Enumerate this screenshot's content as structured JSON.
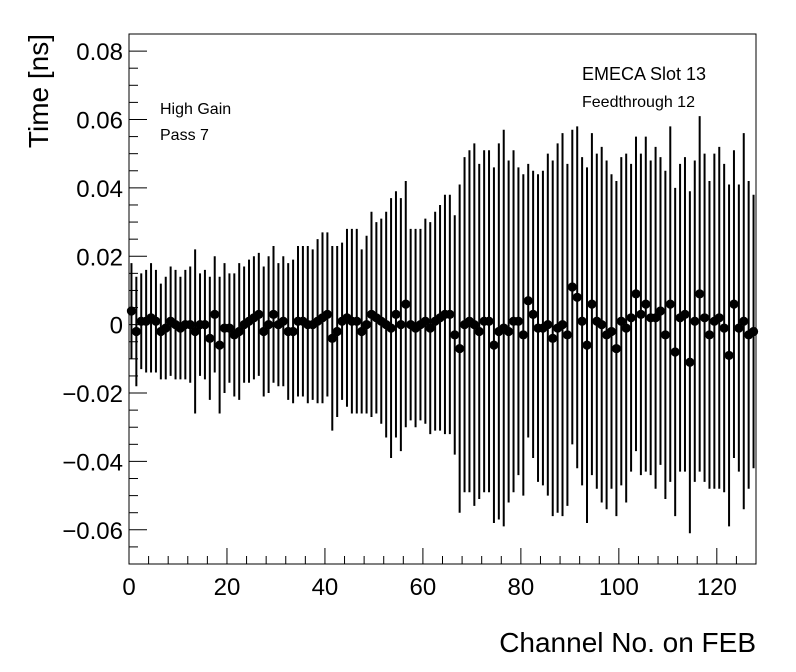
{
  "chart_data": {
    "type": "scatter",
    "title": "",
    "xlabel": "Channel No. on FEB",
    "ylabel": "Time [ns]",
    "xlim": [
      0,
      128
    ],
    "ylim": [
      -0.07,
      0.085
    ],
    "grid": false,
    "x_ticks": [
      0,
      20,
      40,
      60,
      80,
      100,
      120
    ],
    "x_tick_labels": [
      "0",
      "20",
      "40",
      "60",
      "80",
      "100",
      "120"
    ],
    "y_ticks": [
      -0.06,
      -0.04,
      -0.02,
      0,
      0.02,
      0.04,
      0.06,
      0.08
    ],
    "y_tick_labels": [
      "−0.06",
      "−0.04",
      "−0.02",
      "0",
      "0.02",
      "0.04",
      "0.06",
      "0.08"
    ],
    "annotations": {
      "left": [
        "High Gain",
        "Pass 7"
      ],
      "right": [
        "EMECA Slot 13",
        "Feedthrough 12"
      ]
    },
    "marker_color": "#000000",
    "series": [
      {
        "x": [
          0,
          1,
          2,
          3,
          4,
          5,
          6,
          7,
          8,
          9,
          10,
          11,
          12,
          13,
          14,
          15,
          16,
          17,
          18,
          19,
          20,
          21,
          22,
          23,
          24,
          25,
          26,
          27,
          28,
          29,
          30,
          31,
          32,
          33,
          34,
          35,
          36,
          37,
          38,
          39,
          40,
          41,
          42,
          43,
          44,
          45,
          46,
          47,
          48,
          49,
          50,
          51,
          52,
          53,
          54,
          55,
          56,
          57,
          58,
          59,
          60,
          61,
          62,
          63,
          64,
          65,
          66,
          67,
          68,
          69,
          70,
          71,
          72,
          73,
          74,
          75,
          76,
          77,
          78,
          79,
          80,
          81,
          82,
          83,
          84,
          85,
          86,
          87,
          88,
          89,
          90,
          91,
          92,
          93,
          94,
          95,
          96,
          97,
          98,
          99,
          100,
          101,
          102,
          103,
          104,
          105,
          106,
          107,
          108,
          109,
          110,
          111,
          112,
          113,
          114,
          115,
          116,
          117,
          118,
          119,
          120,
          121,
          122,
          123,
          124,
          125,
          126,
          127
        ],
        "y": [
          0.004,
          -0.002,
          0.001,
          0.001,
          0.002,
          0.001,
          -0.002,
          -0.001,
          0.001,
          0,
          -0.001,
          0,
          0,
          -0.002,
          0,
          0,
          -0.004,
          0.003,
          -0.006,
          -0.001,
          -0.001,
          -0.003,
          -0.002,
          0,
          0.001,
          0.002,
          0.003,
          -0.002,
          0,
          0.003,
          0,
          0.001,
          -0.002,
          -0.002,
          0.001,
          0.001,
          0,
          0,
          0.001,
          0.002,
          0.003,
          -0.004,
          -0.002,
          0.001,
          0.002,
          0.001,
          0.001,
          -0.002,
          0,
          0.003,
          0.002,
          0.001,
          0,
          -0.001,
          0.003,
          0,
          0.006,
          0,
          -0.001,
          0,
          0.001,
          -0.001,
          0.001,
          0.002,
          0.003,
          0.003,
          -0.003,
          -0.007,
          0,
          0.001,
          0,
          -0.002,
          0.001,
          0.001,
          -0.006,
          -0.002,
          -0.001,
          -0.002,
          0.001,
          0.001,
          -0.003,
          0.007,
          0.003,
          -0.001,
          -0.001,
          0,
          -0.004,
          -0.001,
          0,
          -0.003,
          0.011,
          0.008,
          0.001,
          -0.006,
          0.006,
          0.001,
          0,
          -0.003,
          -0.002,
          -0.007,
          0.001,
          -0.001,
          0.002,
          0.009,
          0.003,
          0.006,
          0.002,
          0.002,
          0.004,
          -0.003,
          0.006,
          -0.008,
          0.002,
          0.003,
          -0.011,
          0.001,
          0.009,
          0.002,
          -0.003,
          0.001,
          0.002,
          -0.001,
          -0.009,
          0.006,
          -0.001,
          0.001,
          -0.003,
          -0.002
        ],
        "yerr": [
          0.014,
          0.016,
          0.014,
          0.015,
          0.016,
          0.015,
          0.014,
          0.015,
          0.016,
          0.016,
          0.015,
          0.016,
          0.017,
          0.024,
          0.015,
          0.016,
          0.018,
          0.017,
          0.02,
          0.019,
          0.016,
          0.018,
          0.02,
          0.017,
          0.018,
          0.018,
          0.018,
          0.019,
          0.02,
          0.02,
          0.018,
          0.019,
          0.02,
          0.021,
          0.022,
          0.022,
          0.023,
          0.022,
          0.024,
          0.025,
          0.024,
          0.027,
          0.025,
          0.023,
          0.026,
          0.027,
          0.027,
          0.024,
          0.026,
          0.03,
          0.028,
          0.03,
          0.033,
          0.038,
          0.036,
          0.037,
          0.036,
          0.028,
          0.029,
          0.028,
          0.03,
          0.031,
          0.032,
          0.033,
          0.035,
          0.035,
          0.035,
          0.048,
          0.049,
          0.05,
          0.053,
          0.049,
          0.05,
          0.05,
          0.052,
          0.055,
          0.058,
          0.05,
          0.05,
          0.045,
          0.047,
          0.04,
          0.042,
          0.045,
          0.046,
          0.05,
          0.052,
          0.054,
          0.056,
          0.05,
          0.046,
          0.05,
          0.048,
          0.052,
          0.05,
          0.049,
          0.052,
          0.051,
          0.046,
          0.049,
          0.048,
          0.051,
          0.045,
          0.046,
          0.047,
          0.049,
          0.046,
          0.05,
          0.045,
          0.048,
          0.052,
          0.048,
          0.045,
          0.046,
          0.05,
          0.047,
          0.052,
          0.048,
          0.045,
          0.049,
          0.05,
          0.048,
          0.05,
          0.045,
          0.042,
          0.055,
          0.045,
          0.04
        ]
      }
    ]
  }
}
